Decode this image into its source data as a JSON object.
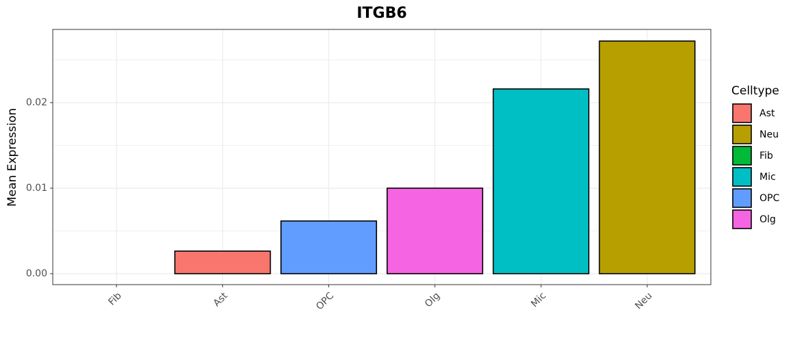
{
  "chart_data": {
    "type": "bar",
    "title": "ITGB6",
    "y_label": "Mean Expression",
    "categories": [
      "Fib",
      "Ast",
      "OPC",
      "Olg",
      "Mic",
      "Neu"
    ],
    "values": [
      0,
      0.00264,
      0.00616,
      0.01,
      0.0216,
      0.0272
    ],
    "ylim": [
      -0.00128,
      0.02856
    ],
    "yticks": [
      {
        "value": 0,
        "label": "0.00"
      },
      0.01,
      0.02
    ],
    "minor_yticks": [
      0.005,
      0.015,
      0.025
    ],
    "grid": true,
    "legend": {
      "title": "Celltype",
      "position": "right",
      "items": [
        {
          "name": "Ast",
          "color": "#F8766D"
        },
        {
          "name": "Neu",
          "color": "#B79F00"
        },
        {
          "name": "Fib",
          "color": "#00BA38"
        },
        {
          "name": "Mic",
          "color": "#00BFC4"
        },
        {
          "name": "OPC",
          "color": "#619CFF"
        },
        {
          "name": "Olg",
          "color": "#F564E3"
        }
      ]
    }
  }
}
